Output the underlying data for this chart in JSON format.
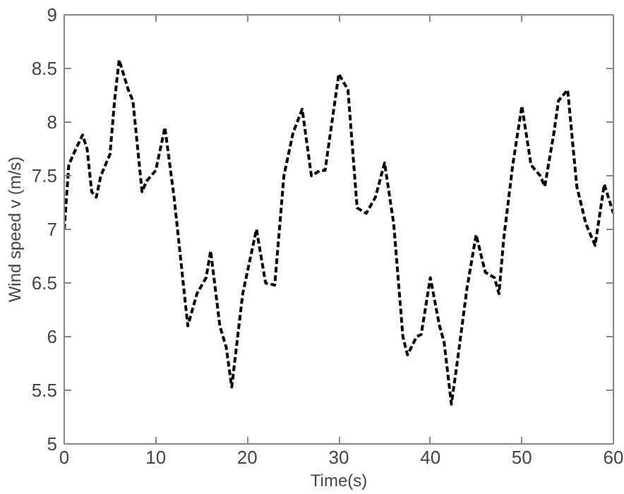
{
  "chart_data": {
    "type": "line",
    "xlabel": "Time(s)",
    "ylabel": "Wind speed v (m/s)",
    "x": [
      0,
      0.5,
      1,
      2,
      2.5,
      3,
      3.5,
      4,
      5,
      5.5,
      6,
      7,
      7.5,
      8.5,
      9,
      10,
      11,
      12,
      13,
      13.5,
      14.5,
      15.5,
      16,
      17,
      17.7,
      18.3,
      19.5,
      20,
      21,
      22,
      23,
      24,
      25,
      26,
      27,
      28,
      28.5,
      30,
      31,
      32,
      33,
      34,
      35,
      36,
      37,
      37.5,
      38.5,
      39,
      40,
      41,
      41.5,
      42.3,
      43,
      44,
      45,
      46,
      47,
      47.5,
      48,
      49,
      50,
      51,
      52,
      52.5,
      53.5,
      54,
      55,
      56,
      57,
      58,
      59,
      60
    ],
    "series": [
      {
        "color": "#000000",
        "values": [
          7.0,
          7.6,
          7.7,
          7.88,
          7.75,
          7.35,
          7.3,
          7.5,
          7.7,
          8.2,
          8.58,
          8.3,
          8.2,
          7.35,
          7.45,
          7.55,
          7.95,
          7.3,
          6.5,
          6.1,
          6.4,
          6.55,
          6.8,
          6.1,
          5.9,
          5.53,
          6.4,
          6.6,
          7.0,
          6.5,
          6.48,
          7.5,
          7.9,
          8.12,
          7.5,
          7.55,
          7.55,
          8.45,
          8.3,
          7.2,
          7.15,
          7.3,
          7.62,
          7.05,
          6.0,
          5.83,
          6.0,
          6.02,
          6.55,
          6.1,
          5.95,
          5.37,
          5.8,
          6.45,
          6.95,
          6.6,
          6.55,
          6.4,
          6.9,
          7.6,
          8.15,
          7.6,
          7.5,
          7.4,
          7.9,
          8.2,
          8.3,
          7.4,
          7.05,
          6.85,
          7.42,
          7.15
        ]
      }
    ],
    "xlim": [
      0,
      60
    ],
    "ylim": [
      5,
      9
    ],
    "xticks": [
      0,
      10,
      20,
      30,
      40,
      50,
      60
    ],
    "yticks": [
      5,
      {
        "value": 5.5,
        "label": "5.5"
      },
      6,
      {
        "value": 6.5,
        "label": "6.5"
      },
      7,
      {
        "value": 7.5,
        "label": "7.5"
      },
      8,
      {
        "value": 8.5,
        "label": "8.5"
      },
      9
    ],
    "grid": false,
    "line_style": "dashed"
  }
}
